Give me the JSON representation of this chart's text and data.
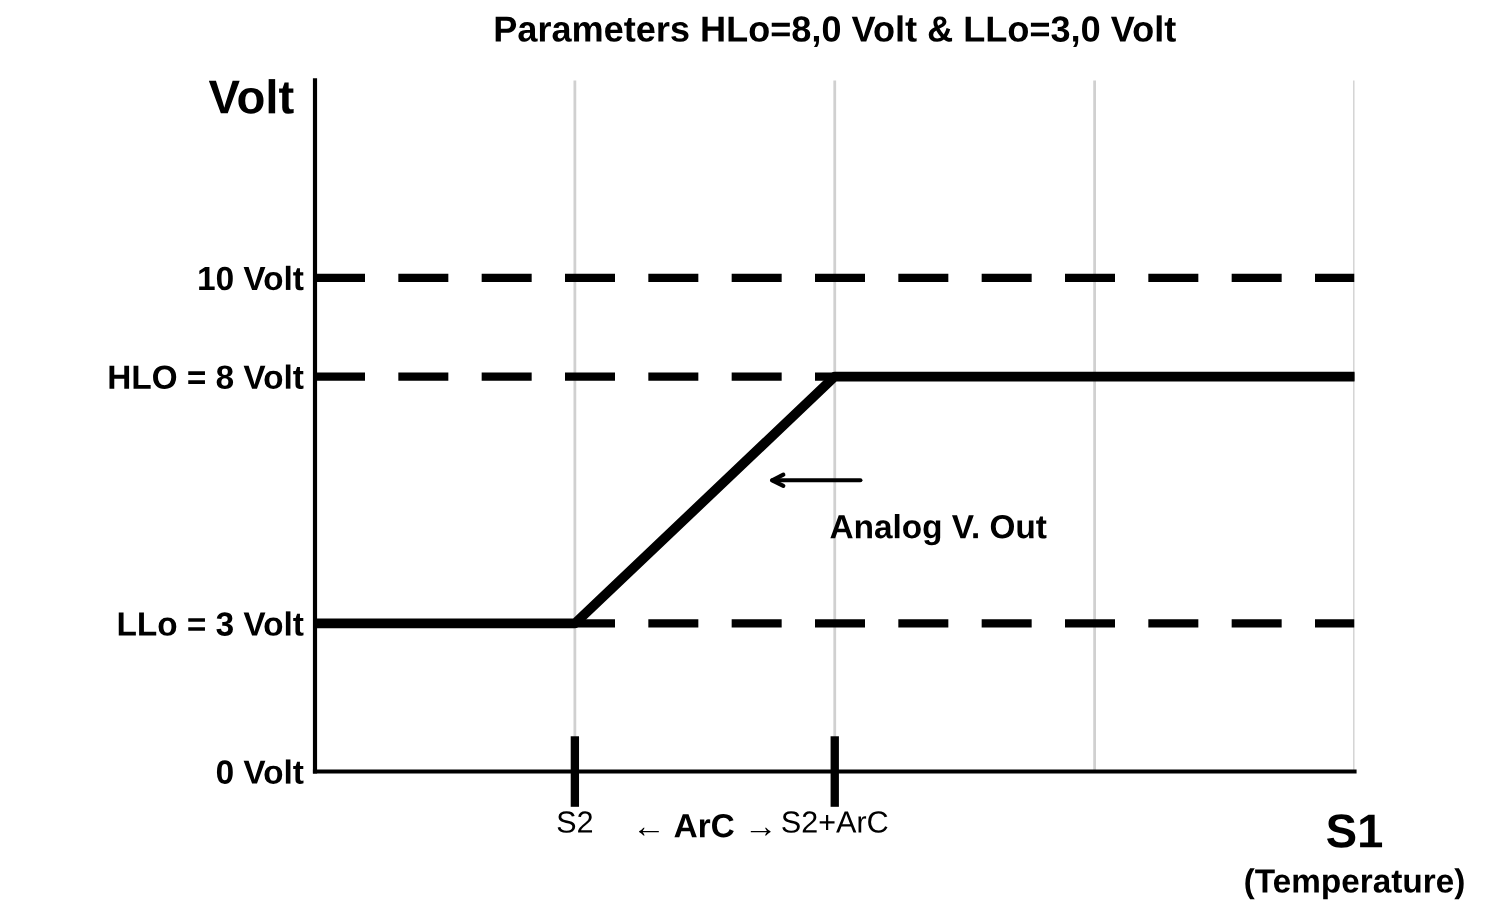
{
  "chart_data": {
    "type": "line",
    "title": "Parameters HLo=8,0 Volt & LLo=3,0 Volt",
    "ylabel": "Volt",
    "xlabel": "S1",
    "annotations": [
      "Analog V. Out",
      "← ArC →",
      "(Temperature)"
    ],
    "categories": [
      null,
      "S2",
      "S2+ArC",
      null,
      null
    ],
    "series": [
      {
        "color": "#000000",
        "values": [
          3,
          3,
          8,
          8,
          8
        ]
      }
    ],
    "ylim": [
      0,
      14
    ],
    "yticks": [
      {
        "value": 0,
        "label": "0 Volt"
      },
      {
        "value": 3,
        "label": "LLo = 3 Volt"
      },
      {
        "value": 8,
        "label": "HLO = 8 Volt"
      },
      {
        "value": 10,
        "label": "10 Volt"
      }
    ],
    "ref_lines": [
      {
        "axis": "y",
        "value": 10,
        "color": "#000000",
        "line_style": "dashed"
      },
      {
        "axis": "y",
        "value": 8,
        "color": "#000000",
        "line_style": "dashed"
      },
      {
        "axis": "y",
        "value": 3,
        "color": "#000000",
        "line_style": "dashed"
      }
    ],
    "grid": "x",
    "marker": "none",
    "line_style": "solid"
  }
}
